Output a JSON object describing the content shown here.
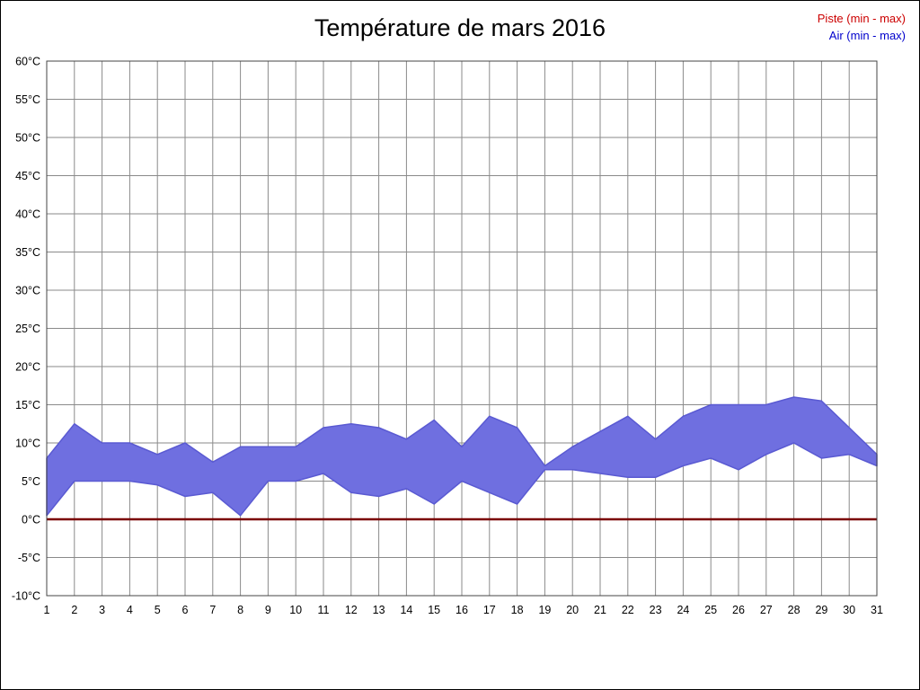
{
  "title": "Température de mars 2016",
  "legend": {
    "piste_label": "Piste (min - max)",
    "air_label": "Air (min - max)"
  },
  "colors": {
    "air_band": "#6f6fe0",
    "air_edge": "#5a5ad2",
    "piste_line": "#7a0000",
    "grid": "#8a8a8a",
    "plot_border": "#444444",
    "axis_text": "#000000",
    "legend_piste": "#cc0000",
    "legend_air": "#0000cc"
  },
  "chart_data": {
    "type": "area",
    "title": "Température de mars 2016",
    "x": [
      1,
      2,
      3,
      4,
      5,
      6,
      7,
      8,
      9,
      10,
      11,
      12,
      13,
      14,
      15,
      16,
      17,
      18,
      19,
      20,
      21,
      22,
      23,
      24,
      25,
      26,
      27,
      28,
      29,
      30,
      31
    ],
    "series": [
      {
        "name": "Air min",
        "values": [
          0.5,
          5,
          5,
          5,
          4.5,
          3,
          3.5,
          0.5,
          5,
          5,
          6,
          3.5,
          3,
          4,
          2,
          5,
          3.5,
          2,
          6.5,
          6.5,
          6,
          5.5,
          5.5,
          7,
          8,
          6.5,
          8.5,
          10,
          8,
          8.5,
          7
        ]
      },
      {
        "name": "Air max",
        "values": [
          8,
          12.5,
          10,
          10,
          8.5,
          10,
          7.5,
          9.5,
          9.5,
          9.5,
          12,
          12.5,
          12,
          10.5,
          13,
          9.5,
          13.5,
          12,
          7,
          9.5,
          11.5,
          13.5,
          10.5,
          13.5,
          15,
          15,
          15,
          16,
          15.5,
          12,
          8.5
        ]
      },
      {
        "name": "Piste",
        "values": [
          0,
          0,
          0,
          0,
          0,
          0,
          0,
          0,
          0,
          0,
          0,
          0,
          0,
          0,
          0,
          0,
          0,
          0,
          0,
          0,
          0,
          0,
          0,
          0,
          0,
          0,
          0,
          0,
          0,
          0,
          0
        ]
      }
    ],
    "yticks": [
      60,
      55,
      50,
      45,
      40,
      35,
      30,
      25,
      20,
      15,
      10,
      5,
      0,
      -5,
      -10
    ],
    "ylabel_suffix": "°C",
    "ylim": [
      -10,
      60
    ],
    "grid": true,
    "legend_position": "top-right"
  }
}
